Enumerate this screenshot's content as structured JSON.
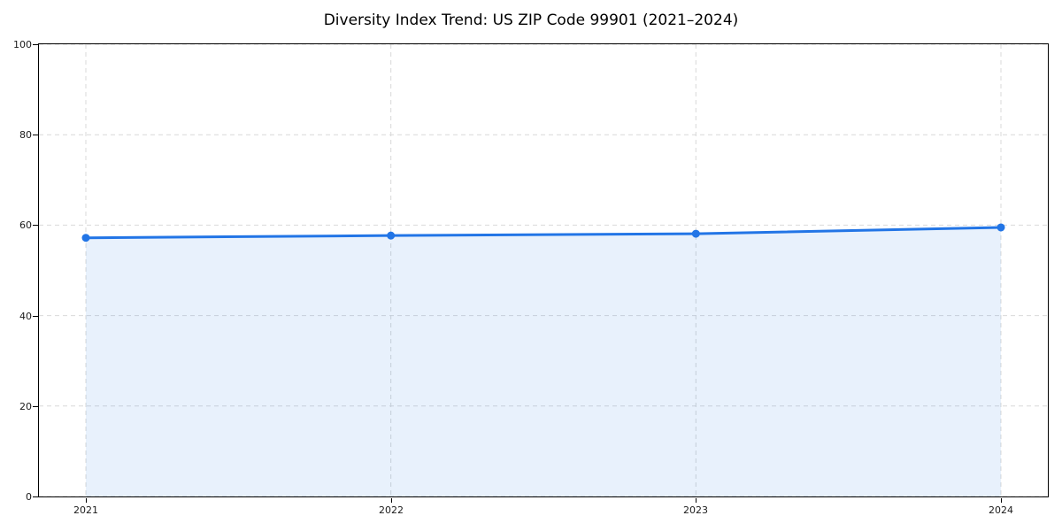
{
  "figure": {
    "title": "Diversity Index Trend: US ZIP Code 99901 (2021–2024)"
  },
  "chart_data": {
    "type": "line",
    "title": "Diversity Index Trend: US ZIP Code 99901 (2021–2024)",
    "categories": [
      "2021",
      "2022",
      "2023",
      "2024"
    ],
    "x": [
      2021,
      2022,
      2023,
      2024
    ],
    "series": [
      {
        "name": "Diversity Index",
        "values": [
          57.2,
          57.7,
          58.1,
          59.5
        ]
      }
    ],
    "xlabel": "",
    "ylabel": "",
    "ylim": [
      0,
      100
    ],
    "yticks": [
      0,
      20,
      40,
      60,
      80,
      100
    ],
    "grid": true,
    "grid_style": "dashed",
    "legend_position": "none",
    "area_fill": true,
    "colors": {
      "line": "#2275e6",
      "marker": "#2275e6",
      "fill": "rgba(34,117,230,0.10)",
      "grid": "#d9d9d9",
      "spine": "#000000",
      "tick_label": "#1a1a1a"
    },
    "x_inner_margin_frac": 0.0464
  }
}
